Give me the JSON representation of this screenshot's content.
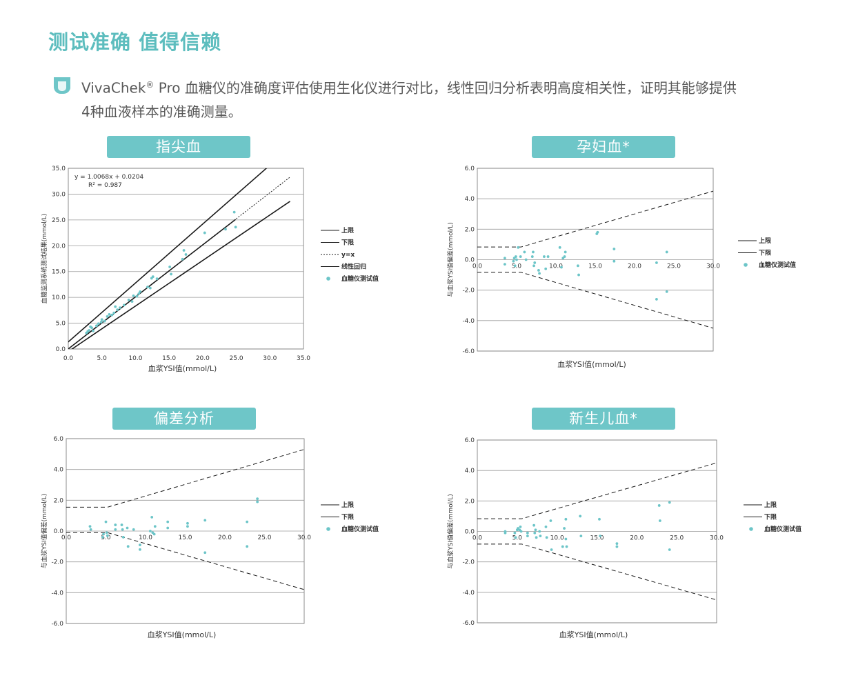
{
  "page": {
    "title": "测试准确  值得信赖",
    "intro_brand": "VivaChek",
    "intro_reg": "®",
    "intro_text": " Pro 血糖仪的准确度评估使用生化仪进行对比，线性回归分析表明高度相关性，证明其能够提供4种血液样本的准确测量。",
    "accent_color": "#6ec6c8",
    "icon": "droplet-icon"
  },
  "chart_data": [
    {
      "id": "fingertip",
      "type": "scatter",
      "title": "指尖血",
      "xlabel": "血浆YSI值(mmol/L)",
      "ylabel": "血糖监测系统测试结果(mmol/L)",
      "xlim": [
        0,
        35
      ],
      "ylim": [
        0,
        35
      ],
      "xticks": [
        0,
        5,
        10,
        15,
        20,
        25,
        30,
        35
      ],
      "yticks": [
        0,
        5,
        10,
        15,
        20,
        25,
        30,
        35
      ],
      "xtick_labels": [
        "0.0",
        "5.0",
        "10.0",
        "15.0",
        "20.0",
        "25.0",
        "30.0",
        "35.0"
      ],
      "ytick_labels": [
        "0.0",
        "5.0",
        "10.0",
        "15.0",
        "20.0",
        "25.0",
        "30.0",
        "35.0"
      ],
      "grid": "horizontal",
      "annotation": [
        "y = 1.0068x + 0.0204",
        "R² = 0.987"
      ],
      "legend": [
        "上限",
        "下限",
        "y=x",
        "线性回归",
        "血糖仪测试值"
      ],
      "lines": [
        {
          "name": "上限",
          "style": "solid",
          "points": [
            [
              -0.5,
              0.8
            ],
            [
              30,
              35.6
            ]
          ]
        },
        {
          "name": "下限",
          "style": "solid",
          "points": [
            [
              0,
              -0.5
            ],
            [
              33,
              28.6
            ]
          ]
        },
        {
          "name": "y=x",
          "style": "dotted",
          "points": [
            [
              0,
              0
            ],
            [
              33,
              33.3
            ]
          ]
        },
        {
          "name": "线性回归",
          "style": "solid",
          "points": [
            [
              0,
              0.02
            ],
            [
              24.9,
              25.1
            ]
          ]
        }
      ],
      "points": [
        [
          2.7,
          3.1
        ],
        [
          2.9,
          3.4
        ],
        [
          3.1,
          3.6
        ],
        [
          3.3,
          4.3
        ],
        [
          3.5,
          4.1
        ],
        [
          3.7,
          3.5
        ],
        [
          4.2,
          4.5
        ],
        [
          4.5,
          4.9
        ],
        [
          4.9,
          5.2
        ],
        [
          5.0,
          5.7
        ],
        [
          5.4,
          5.4
        ],
        [
          5.8,
          6.3
        ],
        [
          6.1,
          6.7
        ],
        [
          6.5,
          6.6
        ],
        [
          6.8,
          7.0
        ],
        [
          7.0,
          8.2
        ],
        [
          7.3,
          7.6
        ],
        [
          7.7,
          8.0
        ],
        [
          8.3,
          8.5
        ],
        [
          9.0,
          9.5
        ],
        [
          9.5,
          9.2
        ],
        [
          9.7,
          10.3
        ],
        [
          10.2,
          10.2
        ],
        [
          10.5,
          10.7
        ],
        [
          10.7,
          11.1
        ],
        [
          11.8,
          12.0
        ],
        [
          12.2,
          11.8
        ],
        [
          12.4,
          13.7
        ],
        [
          12.6,
          14.0
        ],
        [
          13.2,
          13.6
        ],
        [
          15.1,
          15.9
        ],
        [
          15.3,
          14.5
        ],
        [
          17.0,
          17.4
        ],
        [
          17.2,
          19.1
        ],
        [
          17.5,
          18.3
        ],
        [
          20.3,
          22.5
        ],
        [
          23.4,
          23.2
        ],
        [
          24.7,
          26.5
        ],
        [
          24.9,
          23.6
        ]
      ]
    },
    {
      "id": "pregnant",
      "type": "scatter",
      "title": "孕妇血*",
      "xlabel": "血浆YSI值(mmol/L)",
      "ylabel": "与血浆YSI值偏差(mmol/L)",
      "xlim": [
        0,
        30
      ],
      "ylim": [
        -6,
        6
      ],
      "xticks": [
        0,
        5,
        10,
        15,
        20,
        25,
        30
      ],
      "yticks": [
        -6,
        -4,
        -2,
        0,
        2,
        4,
        6
      ],
      "xtick_labels": [
        "0.0",
        "5.0",
        "10.0",
        "15.0",
        "20.0",
        "25.0",
        "30.0"
      ],
      "ytick_labels": [
        "-6.0",
        "-4.0",
        "-2.0",
        "0.0",
        "2.0",
        "4.0",
        "6.0"
      ],
      "grid": "horizontal",
      "legend": [
        "上限",
        "下限",
        "血糖仪测试值"
      ],
      "lines": [
        {
          "name": "上限",
          "style": "dashed",
          "points": [
            [
              0,
              0.83
            ],
            [
              5.55,
              0.83
            ],
            [
              30,
              4.5
            ]
          ]
        },
        {
          "name": "下限",
          "style": "dashed",
          "points": [
            [
              0,
              -0.83
            ],
            [
              5.55,
              -0.83
            ],
            [
              30,
              -4.5
            ]
          ]
        }
      ],
      "points": [
        [
          3.5,
          0.1
        ],
        [
          3.5,
          -0.3
        ],
        [
          4.6,
          -0.1
        ],
        [
          4.7,
          0.1
        ],
        [
          4.8,
          -0.4
        ],
        [
          4.9,
          0.2
        ],
        [
          5.0,
          0.0
        ],
        [
          5.2,
          0.8
        ],
        [
          5.5,
          0.2
        ],
        [
          6.0,
          0.5
        ],
        [
          6.2,
          0.0
        ],
        [
          7.0,
          0.2
        ],
        [
          7.1,
          0.5
        ],
        [
          7.2,
          -0.4
        ],
        [
          7.3,
          -0.2
        ],
        [
          7.8,
          -0.7
        ],
        [
          7.9,
          -0.9
        ],
        [
          8.5,
          0.2
        ],
        [
          8.7,
          -0.6
        ],
        [
          9.0,
          0.2
        ],
        [
          10.5,
          0.8
        ],
        [
          10.7,
          -0.5
        ],
        [
          10.9,
          0.1
        ],
        [
          11.1,
          0.2
        ],
        [
          11.2,
          0.5
        ],
        [
          12.8,
          -0.4
        ],
        [
          12.9,
          -1.0
        ],
        [
          15.2,
          1.7
        ],
        [
          15.3,
          1.8
        ],
        [
          17.4,
          0.7
        ],
        [
          17.4,
          -0.1
        ],
        [
          22.8,
          -0.2
        ],
        [
          22.8,
          -2.6
        ],
        [
          24.1,
          0.5
        ],
        [
          24.1,
          -2.1
        ]
      ]
    },
    {
      "id": "bias",
      "type": "scatter",
      "title": "偏差分析",
      "xlabel": "血浆YSI值(mmol/L)",
      "ylabel": "与血浆YSI值偏差(mmol/L)",
      "xlim": [
        0,
        30
      ],
      "ylim": [
        -6,
        6
      ],
      "xticks": [
        0,
        5,
        10,
        15,
        20,
        25,
        30
      ],
      "yticks": [
        -6,
        -4,
        -2,
        0,
        2,
        4,
        6
      ],
      "xtick_labels": [
        "0.0",
        "5.0",
        "10.0",
        "15.0",
        "20.0",
        "25.0",
        "30.0"
      ],
      "ytick_labels": [
        "-6.0",
        "-4.0",
        "-2.0",
        "0.0",
        "2.0",
        "4.0",
        "6.0"
      ],
      "grid": "horizontal",
      "legend": [
        "上限",
        "下限",
        "血糖仪测试值"
      ],
      "lines": [
        {
          "name": "上限",
          "style": "dashed",
          "points": [
            [
              0,
              1.55
            ],
            [
              5.2,
              1.55
            ],
            [
              30,
              5.3
            ]
          ]
        },
        {
          "name": "下限",
          "style": "dashed",
          "points": [
            [
              0,
              -0.1
            ],
            [
              5.2,
              -0.1
            ],
            [
              30,
              -3.8
            ]
          ]
        }
      ],
      "points": [
        [
          3.0,
          0.3
        ],
        [
          3.1,
          0.1
        ],
        [
          4.6,
          -0.4
        ],
        [
          4.7,
          -0.2
        ],
        [
          5.0,
          0.6
        ],
        [
          5.1,
          -0.1
        ],
        [
          5.2,
          -0.3
        ],
        [
          6.2,
          0.1
        ],
        [
          6.2,
          0.4
        ],
        [
          7.0,
          0.4
        ],
        [
          7.1,
          0.1
        ],
        [
          7.2,
          -0.4
        ],
        [
          7.7,
          0.2
        ],
        [
          7.8,
          -1.0
        ],
        [
          8.5,
          0.1
        ],
        [
          9.3,
          -0.9
        ],
        [
          9.3,
          -1.2
        ],
        [
          10.6,
          0.0
        ],
        [
          10.8,
          0.9
        ],
        [
          10.9,
          -0.1
        ],
        [
          11.1,
          -0.2
        ],
        [
          11.2,
          0.3
        ],
        [
          12.8,
          0.6
        ],
        [
          12.8,
          0.2
        ],
        [
          15.3,
          0.5
        ],
        [
          15.3,
          0.3
        ],
        [
          17.5,
          0.7
        ],
        [
          17.5,
          -1.4
        ],
        [
          22.8,
          0.6
        ],
        [
          22.8,
          -1.0
        ],
        [
          24.1,
          2.1
        ],
        [
          24.1,
          1.9
        ]
      ]
    },
    {
      "id": "neonatal",
      "type": "scatter",
      "title": "新生儿血*",
      "xlabel": "血浆YSI值(mmol/L)",
      "ylabel": "与血浆YSI值偏差(mmol/L)",
      "xlim": [
        0,
        30
      ],
      "ylim": [
        -6,
        6
      ],
      "xticks": [
        0,
        5,
        10,
        15,
        20,
        25,
        30
      ],
      "yticks": [
        -6,
        -4,
        -2,
        0,
        2,
        4,
        6
      ],
      "xtick_labels": [
        "0.0",
        "5.0",
        "10.0",
        "15.0",
        "20.0",
        "25.0",
        "30.0"
      ],
      "ytick_labels": [
        "-6.0",
        "-4.0",
        "-2.0",
        "0.0",
        "2.0",
        "4.0",
        "6.0"
      ],
      "grid": "horizontal",
      "legend": [
        "上限",
        "下限",
        "血糖仪测试值"
      ],
      "lines": [
        {
          "name": "上限",
          "style": "dashed",
          "points": [
            [
              0,
              0.83
            ],
            [
              5.55,
              0.83
            ],
            [
              30,
              4.5
            ]
          ]
        },
        {
          "name": "下限",
          "style": "dashed",
          "points": [
            [
              0,
              -0.83
            ],
            [
              5.55,
              -0.83
            ],
            [
              30,
              -4.5
            ]
          ]
        }
      ],
      "points": [
        [
          3.5,
          0.0
        ],
        [
          3.5,
          -0.1
        ],
        [
          4.7,
          -0.1
        ],
        [
          4.8,
          -0.4
        ],
        [
          5.0,
          0.1
        ],
        [
          5.1,
          0.2
        ],
        [
          5.3,
          0.1
        ],
        [
          5.4,
          0.3
        ],
        [
          5.5,
          0.0
        ],
        [
          6.3,
          -0.1
        ],
        [
          6.3,
          -0.3
        ],
        [
          7.1,
          0.4
        ],
        [
          7.2,
          -0.1
        ],
        [
          7.3,
          0.1
        ],
        [
          7.4,
          -0.4
        ],
        [
          7.8,
          0.0
        ],
        [
          7.9,
          -0.3
        ],
        [
          8.6,
          0.3
        ],
        [
          8.7,
          -0.4
        ],
        [
          9.2,
          0.7
        ],
        [
          9.3,
          -1.2
        ],
        [
          10.7,
          -1.0
        ],
        [
          10.9,
          0.2
        ],
        [
          11.1,
          0.8
        ],
        [
          11.2,
          -1.0
        ],
        [
          11.1,
          -0.5
        ],
        [
          12.9,
          1.0
        ],
        [
          13.0,
          -0.3
        ],
        [
          15.3,
          0.8
        ],
        [
          15.4,
          -0.3
        ],
        [
          17.5,
          -0.8
        ],
        [
          17.5,
          -1.0
        ],
        [
          22.8,
          1.7
        ],
        [
          22.9,
          0.7
        ],
        [
          24.1,
          1.9
        ],
        [
          24.1,
          -1.2
        ]
      ]
    }
  ]
}
